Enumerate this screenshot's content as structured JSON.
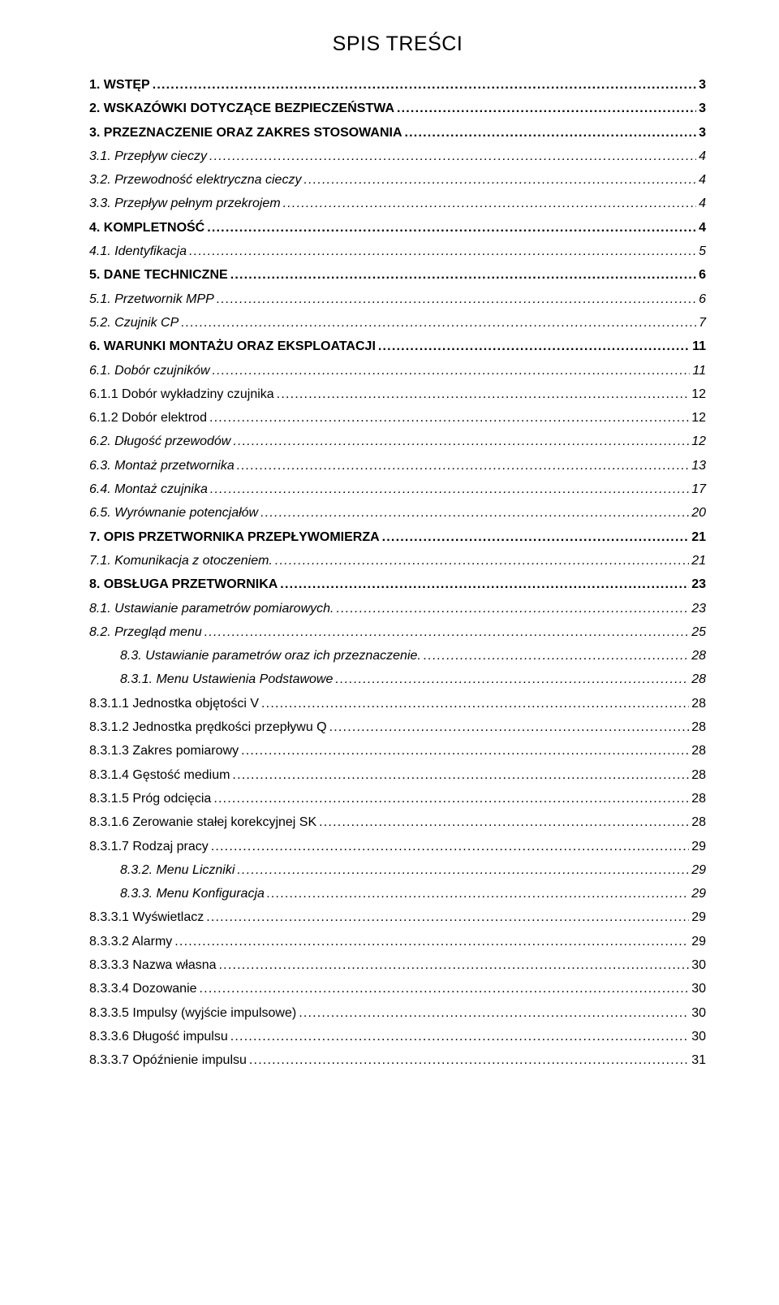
{
  "title": "SPIS TREŚCI",
  "toc": [
    {
      "level": 0,
      "label": "1. WSTĘP",
      "page": "3"
    },
    {
      "level": 0,
      "label": "2. WSKAZÓWKI DOTYCZĄCE BEZPIECZEŃSTWA",
      "page": "3"
    },
    {
      "level": 0,
      "label": "3. PRZEZNACZENIE ORAZ ZAKRES STOSOWANIA",
      "page": "3"
    },
    {
      "level": 1,
      "label": "3.1. Przepływ cieczy",
      "page": "4"
    },
    {
      "level": 1,
      "label": "3.2. Przewodność elektryczna cieczy",
      "page": "4"
    },
    {
      "level": 1,
      "label": "3.3. Przepływ pełnym przekrojem",
      "page": "4"
    },
    {
      "level": 0,
      "label": "4. KOMPLETNOŚĆ",
      "page": "4"
    },
    {
      "level": 1,
      "label": "4.1. Identyfikacja",
      "page": "5"
    },
    {
      "level": 0,
      "label": "5. DANE TECHNICZNE",
      "page": "6"
    },
    {
      "level": 1,
      "label": "5.1. Przetwornik MPP",
      "page": "6"
    },
    {
      "level": 1,
      "label": "5.2. Czujnik CP",
      "page": "7"
    },
    {
      "level": 0,
      "label": "6. WARUNKI MONTAŻU ORAZ EKSPLOATACJI",
      "page": "11"
    },
    {
      "level": 1,
      "label": "6.1. Dobór czujników",
      "page": "11"
    },
    {
      "level": 3,
      "label": "6.1.1 Dobór wykładziny czujnika",
      "page": "12"
    },
    {
      "level": 3,
      "label": "6.1.2 Dobór elektrod",
      "page": "12"
    },
    {
      "level": 1,
      "label": "6.2. Długość przewodów",
      "page": "12"
    },
    {
      "level": 1,
      "label": "6.3. Montaż przetwornika",
      "page": "13"
    },
    {
      "level": 1,
      "label": "6.4. Montaż czujnika",
      "page": "17"
    },
    {
      "level": 1,
      "label": "6.5. Wyrównanie potencjałów",
      "page": "20"
    },
    {
      "level": 0,
      "label": "7. OPIS PRZETWORNIKA PRZEPŁYWOMIERZA",
      "page": "21"
    },
    {
      "level": 1,
      "label": "7.1. Komunikacja z otoczeniem.",
      "page": "21"
    },
    {
      "level": 0,
      "label": "8. OBSŁUGA PRZETWORNIKA",
      "page": "23"
    },
    {
      "level": 1,
      "label": "8.1. Ustawianie parametrów pomiarowych.",
      "page": "23"
    },
    {
      "level": 1,
      "label": "8.2. Przegląd menu",
      "page": "25"
    },
    {
      "level": 2,
      "label": "8.3. Ustawianie parametrów oraz ich przeznaczenie.",
      "page": "28"
    },
    {
      "level": 2,
      "label": "8.3.1. Menu Ustawienia Podstawowe",
      "page": "28"
    },
    {
      "level": 3,
      "label": "8.3.1.1 Jednostka objętości V",
      "page": "28"
    },
    {
      "level": 3,
      "label": "8.3.1.2 Jednostka prędkości przepływu Q",
      "page": "28"
    },
    {
      "level": 3,
      "label": "8.3.1.3 Zakres pomiarowy",
      "page": "28"
    },
    {
      "level": 3,
      "label": "8.3.1.4 Gęstość medium",
      "page": "28"
    },
    {
      "level": 3,
      "label": "8.3.1.5 Próg odcięcia",
      "page": "28"
    },
    {
      "level": 3,
      "label": "8.3.1.6 Zerowanie stałej korekcyjnej SK",
      "page": "28"
    },
    {
      "level": 3,
      "label": "8.3.1.7 Rodzaj pracy",
      "page": "29"
    },
    {
      "level": 2,
      "label": "8.3.2. Menu Liczniki",
      "page": "29"
    },
    {
      "level": 2,
      "label": "8.3.3. Menu Konfiguracja",
      "page": "29"
    },
    {
      "level": 3,
      "label": "8.3.3.1 Wyświetlacz",
      "page": "29"
    },
    {
      "level": 3,
      "label": "8.3.3.2 Alarmy",
      "page": "29"
    },
    {
      "level": 3,
      "label": "8.3.3.3 Nazwa własna",
      "page": "30"
    },
    {
      "level": 3,
      "label": "8.3.3.4 Dozowanie",
      "page": "30"
    },
    {
      "level": 3,
      "label": "8.3.3.5 Impulsy (wyjście impulsowe)",
      "page": "30"
    },
    {
      "level": 3,
      "label": "8.3.3.6 Długość impulsu",
      "page": "30"
    },
    {
      "level": 3,
      "label": "8.3.3.7 Opóźnienie impulsu",
      "page": "31"
    }
  ]
}
